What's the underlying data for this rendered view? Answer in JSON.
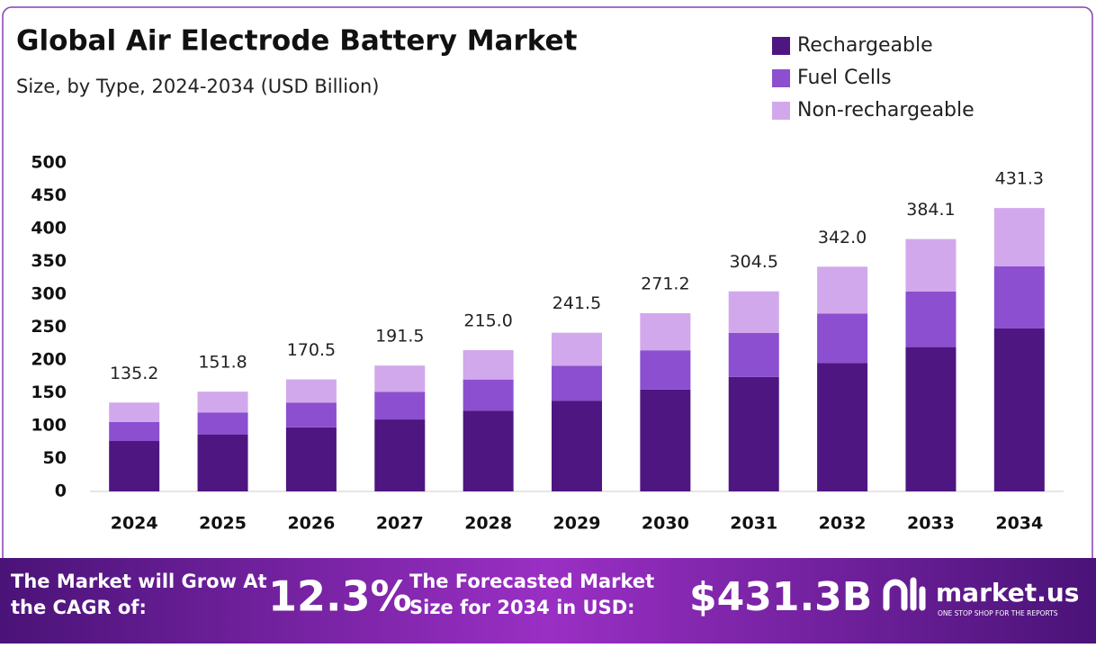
{
  "chart_data": {
    "type": "stacked_bar",
    "title": "Global Air Electrode Battery Market",
    "subtitle": "Size, by Type, 2024-2034 (USD Billion)",
    "categories": [
      "2024",
      "2025",
      "2026",
      "2027",
      "2028",
      "2029",
      "2030",
      "2031",
      "2032",
      "2033",
      "2034"
    ],
    "series": [
      {
        "name": "Rechargeable",
        "color": "#4e1681",
        "values": [
          76.7,
          86.8,
          97.5,
          109.5,
          123.0,
          138.1,
          155.1,
          174.2,
          195.6,
          219.7,
          248.0
        ]
      },
      {
        "name": "Fuel Cells",
        "color": "#8b4fcf",
        "values": [
          28.8,
          33.4,
          37.5,
          42.1,
          47.3,
          53.1,
          59.7,
          67.0,
          75.2,
          84.5,
          94.5
        ]
      },
      {
        "name": "Non-rechargeable",
        "color": "#d2a8ec",
        "values": [
          29.7,
          31.6,
          35.5,
          39.9,
          44.7,
          50.3,
          56.4,
          63.3,
          71.2,
          79.9,
          88.8
        ]
      }
    ],
    "total_labels": [
      "135.2",
      "151.8",
      "170.5",
      "191.5",
      "215.0",
      "241.5",
      "271.2",
      "304.5",
      "342.0",
      "384.1",
      "431.3"
    ],
    "ylim": [
      0,
      500
    ],
    "yticks": [
      0,
      50,
      100,
      150,
      200,
      250,
      300,
      350,
      400,
      450,
      500
    ],
    "legend": "top-right"
  },
  "footer": {
    "cagr_text": "The Market will Grow At the CAGR of:",
    "cagr_value": "12.3%",
    "forecast_text": "The Forecasted Market Size for 2034 in USD:",
    "forecast_value": "$431.3B",
    "brand": "market.us",
    "tagline": "ONE STOP SHOP FOR THE REPORTS"
  }
}
